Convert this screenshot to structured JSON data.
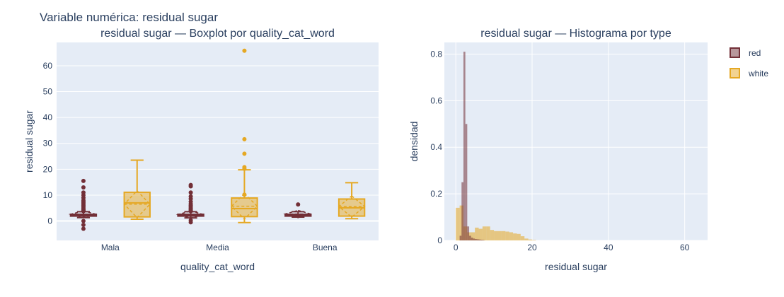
{
  "title": "Variable numérica: residual sugar",
  "legend": {
    "placement": "top-right",
    "items": [
      {
        "name": "red",
        "color": "#722f37"
      },
      {
        "name": "white",
        "color": "#e5a823"
      }
    ]
  },
  "chart_data": [
    {
      "type": "box",
      "title": "residual sugar — Boxplot por quality_cat_word",
      "xlabel": "quality_cat_word",
      "ylabel": "residual sugar",
      "categories": [
        "Mala",
        "Media",
        "Buena"
      ],
      "ylim": [
        -7.5,
        69
      ],
      "yticks": [
        0,
        10,
        20,
        30,
        40,
        50,
        60
      ],
      "grid": true,
      "series": [
        {
          "name": "red",
          "color": "#722f37",
          "boxes": [
            {
              "category": "Mala",
              "min": 1.3,
              "q1": 1.9,
              "median": 2.2,
              "q3": 2.6,
              "max": 3.6,
              "mean": 2.6,
              "sd": 1.3,
              "outliers": [
                -3.0,
                -1.5,
                0.0,
                3.8,
                4.2,
                4.5,
                5.0,
                5.5,
                6.0,
                6.5,
                7.0,
                7.5,
                8.0,
                9.0,
                10.0,
                11.0,
                13.0,
                15.5
              ]
            },
            {
              "category": "Media",
              "min": 1.2,
              "q1": 1.9,
              "median": 2.2,
              "q3": 2.6,
              "max": 3.6,
              "mean": 2.5,
              "sd": 1.4,
              "outliers": [
                -0.5,
                0.3,
                3.8,
                4.2,
                4.6,
                5.0,
                5.5,
                6.0,
                6.6,
                7.5,
                8.6,
                9.5,
                11.0,
                13.4,
                13.9
              ]
            },
            {
              "category": "Buena",
              "min": 1.5,
              "q1": 1.9,
              "median": 2.2,
              "q3": 2.6,
              "max": 3.6,
              "mean": 2.7,
              "sd": 1.4,
              "outliers": [
                6.4
              ]
            }
          ]
        },
        {
          "name": "white",
          "color": "#e5a823",
          "boxes": [
            {
              "category": "Mala",
              "min": 0.7,
              "q1": 1.6,
              "median": 7.0,
              "q3": 11.1,
              "max": 23.5,
              "mean": 6.5,
              "sd": 5.2,
              "outliers": []
            },
            {
              "category": "Media",
              "min": -0.6,
              "q1": 1.7,
              "median": 4.8,
              "q3": 8.9,
              "max": 19.8,
              "mean": 5.7,
              "sd": 4.9,
              "outliers": [
                10.2,
                20.2,
                20.8,
                26.0,
                31.6,
                65.8
              ]
            },
            {
              "category": "Buena",
              "min": 0.9,
              "q1": 1.9,
              "median": 5.1,
              "q3": 8.5,
              "max": 14.8,
              "mean": 5.6,
              "sd": 4.1,
              "outliers": []
            }
          ]
        }
      ]
    },
    {
      "type": "histogram",
      "title": "residual sugar — Histograma por type",
      "xlabel": "residual sugar",
      "ylabel": "densidad",
      "xlim": [
        -3,
        66
      ],
      "ylim": [
        0,
        0.85
      ],
      "xticks": [
        0,
        20,
        40,
        60
      ],
      "yticks": [
        0,
        0.2,
        0.4,
        0.6,
        0.8
      ],
      "grid": true,
      "series": [
        {
          "name": "red",
          "color": "#722f37",
          "bin_width": 0.5,
          "bins": [
            {
              "x": 1.0,
              "y": 0.02
            },
            {
              "x": 1.5,
              "y": 0.25
            },
            {
              "x": 2.0,
              "y": 0.81
            },
            {
              "x": 2.5,
              "y": 0.5
            },
            {
              "x": 3.0,
              "y": 0.06
            },
            {
              "x": 3.5,
              "y": 0.02
            },
            {
              "x": 4.0,
              "y": 0.012
            },
            {
              "x": 4.5,
              "y": 0.008
            },
            {
              "x": 5.0,
              "y": 0.006
            },
            {
              "x": 5.5,
              "y": 0.005
            },
            {
              "x": 6.0,
              "y": 0.004
            },
            {
              "x": 6.5,
              "y": 0.003
            },
            {
              "x": 7.0,
              "y": 0.002
            }
          ]
        },
        {
          "name": "white",
          "color": "#e5a823",
          "bin_width": 1.0,
          "bins": [
            {
              "x": 0.0,
              "y": 0.14
            },
            {
              "x": 1.0,
              "y": 0.15
            },
            {
              "x": 2.0,
              "y": 0.06
            },
            {
              "x": 3.0,
              "y": 0.035
            },
            {
              "x": 4.0,
              "y": 0.035
            },
            {
              "x": 5.0,
              "y": 0.055
            },
            {
              "x": 6.0,
              "y": 0.05
            },
            {
              "x": 7.0,
              "y": 0.06
            },
            {
              "x": 8.0,
              "y": 0.06
            },
            {
              "x": 9.0,
              "y": 0.045
            },
            {
              "x": 10.0,
              "y": 0.04
            },
            {
              "x": 11.0,
              "y": 0.04
            },
            {
              "x": 12.0,
              "y": 0.04
            },
            {
              "x": 13.0,
              "y": 0.038
            },
            {
              "x": 14.0,
              "y": 0.035
            },
            {
              "x": 15.0,
              "y": 0.03
            },
            {
              "x": 16.0,
              "y": 0.028
            },
            {
              "x": 17.0,
              "y": 0.018
            },
            {
              "x": 18.0,
              "y": 0.008
            },
            {
              "x": 19.0,
              "y": 0.004
            },
            {
              "x": 20.0,
              "y": 0.002
            }
          ]
        }
      ]
    }
  ]
}
